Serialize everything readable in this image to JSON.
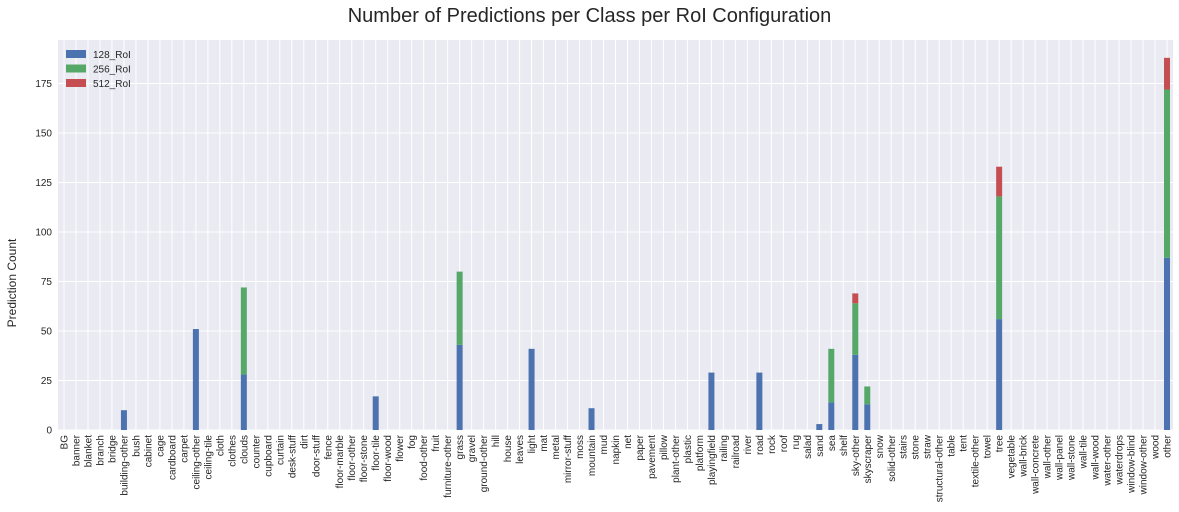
{
  "chart_data": {
    "type": "bar",
    "stacked": true,
    "title": "Number of Predictions per Class per RoI Configuration",
    "xlabel": "",
    "ylabel": "Prediction Count",
    "ylim": [
      0,
      197
    ],
    "yticks": [
      0,
      25,
      50,
      75,
      100,
      125,
      150,
      175
    ],
    "grid": true,
    "legend_position": "top-left",
    "categories": [
      "BG",
      "banner",
      "blanket",
      "branch",
      "bridge",
      "building-other",
      "bush",
      "cabinet",
      "cage",
      "cardboard",
      "carpet",
      "ceiling-other",
      "ceiling-tile",
      "cloth",
      "clothes",
      "clouds",
      "counter",
      "cupboard",
      "curtain",
      "desk-stuff",
      "dirt",
      "door-stuff",
      "fence",
      "floor-marble",
      "floor-other",
      "floor-stone",
      "floor-tile",
      "floor-wood",
      "flower",
      "fog",
      "food-other",
      "fruit",
      "furniture-other",
      "grass",
      "gravel",
      "ground-other",
      "hill",
      "house",
      "leaves",
      "light",
      "mat",
      "metal",
      "mirror-stuff",
      "moss",
      "mountain",
      "mud",
      "napkin",
      "net",
      "paper",
      "pavement",
      "pillow",
      "plant-other",
      "plastic",
      "platform",
      "playingfield",
      "railing",
      "railroad",
      "river",
      "road",
      "rock",
      "roof",
      "rug",
      "salad",
      "sand",
      "sea",
      "shelf",
      "sky-other",
      "skyscraper",
      "snow",
      "solid-other",
      "stairs",
      "stone",
      "straw",
      "structural-other",
      "table",
      "tent",
      "textile-other",
      "towel",
      "tree",
      "vegetable",
      "wall-brick",
      "wall-concrete",
      "wall-other",
      "wall-panel",
      "wall-stone",
      "wall-tile",
      "wall-wood",
      "water-other",
      "waterdrops",
      "window-blind",
      "window-other",
      "wood",
      "other"
    ],
    "series": [
      {
        "name": "128_RoI",
        "color": "#4c72b0",
        "values": [
          0,
          0,
          0,
          0,
          0,
          10,
          0,
          0,
          0,
          0,
          0,
          51,
          0,
          0,
          0,
          28,
          0,
          0,
          0,
          0,
          0,
          0,
          0,
          0,
          0,
          0,
          17,
          0,
          0,
          0,
          0,
          0,
          0,
          43,
          0,
          0,
          0,
          0,
          0,
          41,
          0,
          0,
          0,
          0,
          11,
          0,
          0,
          0,
          0,
          0,
          0,
          0,
          0,
          0,
          29,
          0,
          0,
          0,
          29,
          0,
          0,
          0,
          0,
          3,
          14,
          0,
          38,
          13,
          0,
          0,
          0,
          0,
          0,
          0,
          0,
          0,
          0,
          0,
          56,
          0,
          0,
          0,
          0,
          0,
          0,
          0,
          0,
          0,
          0,
          0,
          0,
          0,
          87
        ]
      },
      {
        "name": "256_RoI",
        "color": "#55a868",
        "values": [
          0,
          0,
          0,
          0,
          0,
          0,
          0,
          0,
          0,
          0,
          0,
          0,
          0,
          0,
          0,
          44,
          0,
          0,
          0,
          0,
          0,
          0,
          0,
          0,
          0,
          0,
          0,
          0,
          0,
          0,
          0,
          0,
          0,
          37,
          0,
          0,
          0,
          0,
          0,
          0,
          0,
          0,
          0,
          0,
          0,
          0,
          0,
          0,
          0,
          0,
          0,
          0,
          0,
          0,
          0,
          0,
          0,
          0,
          0,
          0,
          0,
          0,
          0,
          0,
          27,
          0,
          26,
          9,
          0,
          0,
          0,
          0,
          0,
          0,
          0,
          0,
          0,
          0,
          62,
          0,
          0,
          0,
          0,
          0,
          0,
          0,
          0,
          0,
          0,
          0,
          0,
          0,
          85
        ]
      },
      {
        "name": "512_RoI",
        "color": "#c44e52",
        "values": [
          0,
          0,
          0,
          0,
          0,
          0,
          0,
          0,
          0,
          0,
          0,
          0,
          0,
          0,
          0,
          0,
          0,
          0,
          0,
          0,
          0,
          0,
          0,
          0,
          0,
          0,
          0,
          0,
          0,
          0,
          0,
          0,
          0,
          0,
          0,
          0,
          0,
          0,
          0,
          0,
          0,
          0,
          0,
          0,
          0,
          0,
          0,
          0,
          0,
          0,
          0,
          0,
          0,
          0,
          0,
          0,
          0,
          0,
          0,
          0,
          0,
          0,
          0,
          0,
          0,
          0,
          5,
          0,
          0,
          0,
          0,
          0,
          0,
          0,
          0,
          0,
          0,
          0,
          15,
          0,
          0,
          0,
          0,
          0,
          0,
          0,
          0,
          0,
          0,
          0,
          0,
          0,
          16
        ]
      }
    ]
  }
}
